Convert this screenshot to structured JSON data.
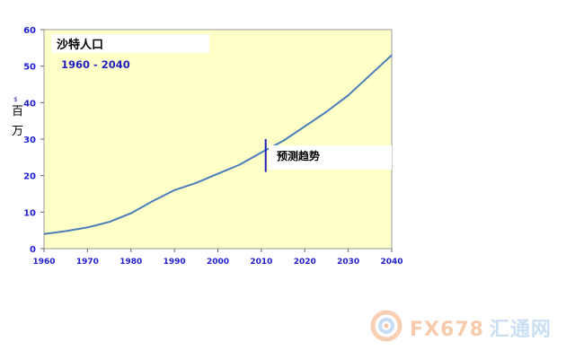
{
  "chart_data": {
    "type": "line",
    "title": "沙特人口",
    "subtitle": "1960 - 2040",
    "ylabel_chars": [
      "百",
      "万"
    ],
    "ylabel_unit": "$",
    "annotation": "预测趋势",
    "annotation_year": 2011,
    "xlim": [
      1960,
      2040
    ],
    "ylim": [
      0,
      60
    ],
    "xticks": [
      1960,
      1970,
      1980,
      1990,
      2000,
      2010,
      2020,
      2030,
      2040
    ],
    "yticks": [
      0,
      10,
      20,
      30,
      40,
      50,
      60
    ],
    "grid": false,
    "colors": {
      "plot_bg": "#FFFFC8",
      "line": "#4A7EBB",
      "tick_text": "#1F1FD0",
      "marker": "#2020C0"
    },
    "series": [
      {
        "x": [
          1960,
          1965,
          1970,
          1975,
          1980,
          1985,
          1990,
          1995,
          2000,
          2005,
          2011,
          2015,
          2020,
          2025,
          2030,
          2035,
          2040
        ],
        "values": [
          4.0,
          4.8,
          5.8,
          7.3,
          9.7,
          13.0,
          16.0,
          18.0,
          20.5,
          23.0,
          27.0,
          29.5,
          33.5,
          37.5,
          42.0,
          47.5,
          53.0
        ]
      }
    ]
  },
  "watermark": {
    "brand": "FX678",
    "cn": "汇通网",
    "icon": "spiral-logo-icon"
  }
}
